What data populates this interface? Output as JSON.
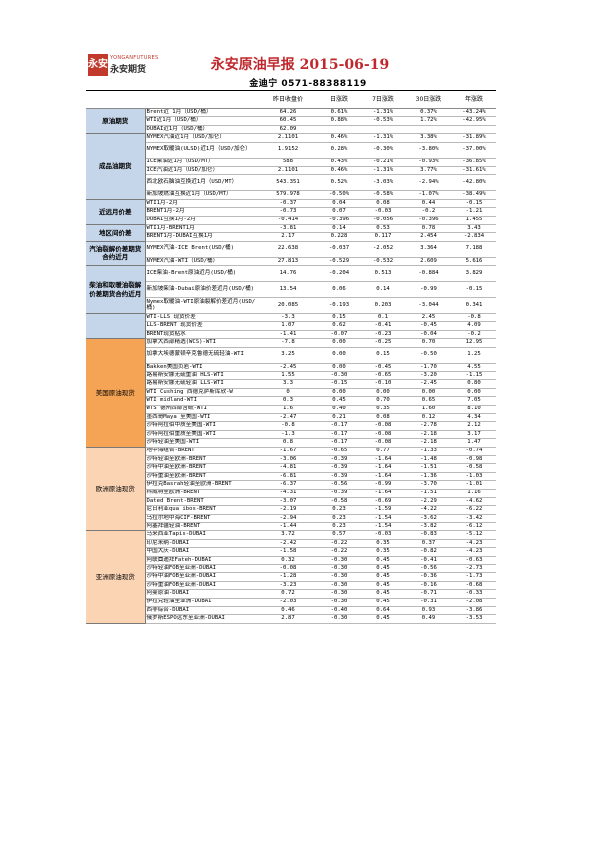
{
  "logo": {
    "mark": "永安",
    "en": "YONGANFUTURES",
    "cn": "永安期货"
  },
  "title": "永安原油早报 2015-06-19",
  "author": "金迪宁 0571-88388119",
  "columns": [
    "",
    "",
    "昨日收盘价",
    "日涨跌",
    "7日涨跌",
    "30日涨跌",
    "年涨跌"
  ],
  "sections": [
    {
      "name": "原油期货",
      "style": "blue",
      "rows": [
        {
          "label": "Brent近 1月（USD/桶）",
          "v": [
            "64.26",
            "0.61%",
            "-1.31%",
            "0.37%",
            "-43.24%"
          ]
        },
        {
          "label": "WTI近1月（USD/桶）",
          "v": [
            "60.45",
            "0.88%",
            "-0.53%",
            "1.72%",
            "-42.95%"
          ]
        },
        {
          "label": "DUBAI近1月（USD/桶）",
          "v": [
            "62.09",
            "",
            "",
            "",
            ""
          ]
        }
      ]
    },
    {
      "name": "成品油期货",
      "style": "blue",
      "rows": [
        {
          "label": "NYMEX汽油近1月（USD/加仑）",
          "v": [
            "2.1101",
            "0.46%",
            "-1.31%",
            "3.38%",
            "-31.89%"
          ]
        },
        {
          "label": "NYMEX取暖油(ULSD)近1月（USD/加仑）",
          "v": [
            "1.9152",
            "0.28%",
            "-0.30%",
            "-3.80%",
            "-37.00%"
          ],
          "tall": true
        },
        {
          "label": "ICE柴油近1月（USD/MT）",
          "v": [
            "588",
            "0.43%",
            "-0.21%",
            "-0.93%",
            "-36.85%"
          ]
        },
        {
          "label": "ICE汽油近1月（USD/加仑）",
          "v": [
            "2.1101",
            "0.46%",
            "-1.31%",
            "3.77%",
            "-31.61%"
          ]
        },
        {
          "label": "西北欧石脑油互换近1月（USD/MT）",
          "v": [
            "543.351",
            "0.52%",
            "-3.03%",
            "-2.94%",
            "-42.80%"
          ],
          "tall": true
        },
        {
          "label": "新加坡燃油互换近1月（USD/MT）",
          "v": [
            "579.978",
            "-0.50%",
            "-0.58%",
            "-1.07%",
            "-38.49%"
          ]
        }
      ]
    },
    {
      "name": "近远月价差",
      "style": "blue",
      "rows": [
        {
          "label": "WTI1月-2月",
          "v": [
            "-0.37",
            "0.04",
            "0.08",
            "0.44",
            "-0.15"
          ]
        },
        {
          "label": "BRENT1月-2月",
          "v": [
            "-0.73",
            "0.07",
            "-0.03",
            "-0.2",
            "-1.21"
          ]
        },
        {
          "label": "DUBAI互换1月-2月",
          "v": [
            "-0.414",
            "-0.396",
            "-0.056",
            "-0.396",
            "1.455"
          ]
        }
      ]
    },
    {
      "name": "地区间价差",
      "style": "blue",
      "rows": [
        {
          "label": "WTI1月-BRENT1月",
          "v": [
            "-3.81",
            "0.14",
            "0.53",
            "0.78",
            "3.43"
          ]
        },
        {
          "label": "BRENT1月-DUBAI互换1月",
          "v": [
            "2.17",
            "0.228",
            "0.117",
            "2.454",
            "-2.834"
          ]
        }
      ]
    },
    {
      "name": "汽油裂解价差期货合约近月",
      "style": "blue",
      "rows": [
        {
          "label": "NYMEX汽油-ICE Brent(USD/桶)",
          "v": [
            "22.638",
            "-0.037",
            "-2.052",
            "3.364",
            "7.188"
          ],
          "tall": true
        },
        {
          "label": "NYMEX汽油-WTI（USD/桶）",
          "v": [
            "27.813",
            "-0.529",
            "-0.532",
            "2.609",
            "5.616"
          ]
        }
      ]
    },
    {
      "name": "柴油和取暖油裂解价差期货合约近月",
      "style": "blue",
      "rows": [
        {
          "label": "ICE柴油-Brent原油近月(USD/桶)",
          "v": [
            "14.76",
            "-0.204",
            "0.513",
            "-0.884",
            "3.829"
          ],
          "tall": true
        },
        {
          "label": "新加坡柴油-Dubai原油价差近月(USD/桶)",
          "v": [
            "13.54",
            "0.06",
            "0.14",
            "-0.99",
            "-0.15"
          ],
          "tall": true
        },
        {
          "label": "Nymex取暖油-WTI原油裂解价差近月(USD/桶)",
          "v": [
            "20.085",
            "-0.193",
            "0.203",
            "-3.044",
            "0.341"
          ],
          "tall": true
        }
      ]
    },
    {
      "name": "",
      "style": "blue",
      "rows": [
        {
          "label": "WTI-LLS 现货价差",
          "v": [
            "-3.3",
            "0.15",
            "0.1",
            "2.45",
            "-0.8"
          ]
        },
        {
          "label": "LLS-BRENT 现货价差",
          "v": [
            "1.07",
            "0.62",
            "-0.41",
            "-0.45",
            "4.09"
          ]
        },
        {
          "label": "BRENT现货贴水",
          "v": [
            "-1.41",
            "-0.07",
            "-0.23",
            "-0.04",
            "-0.2"
          ]
        }
      ]
    },
    {
      "name": "美国原油现货",
      "style": "orange",
      "rows": [
        {
          "label": "加拿大西部精选(WCS)-WTI",
          "v": [
            "-7.8",
            "0.00",
            "-0.25",
            "0.70",
            "12.95"
          ]
        },
        {
          "label": "加拿大埃德蒙顿辛克鲁德无硫轻油-WTI",
          "v": [
            "3.25",
            "0.00",
            "0.15",
            "-0.50",
            "1.25"
          ],
          "tall": true
        },
        {
          "label": "Bakken美国页岩-WTI",
          "v": [
            "-2.45",
            "0.00",
            "-0.45",
            "-1.70",
            "4.55"
          ]
        },
        {
          "label": "路易斯安娜无硫重油 HLS-WTI",
          "v": [
            "1.55",
            "-0.30",
            "-0.65",
            "-3.20",
            "-1.15"
          ]
        },
        {
          "label": "路易斯安娜无硫轻油 LLS-WTI",
          "v": [
            "3.3",
            "-0.15",
            "-0.10",
            "-2.45",
            "0.80"
          ]
        },
        {
          "label": "WTI Cushing 西德克萨斯库欣-W",
          "v": [
            "0",
            "0.00",
            "0.00",
            "0.00",
            "0.00"
          ]
        },
        {
          "label": "WTI midland-WTI",
          "v": [
            "0.3",
            "0.45",
            "0.70",
            "0.65",
            "7.05"
          ]
        },
        {
          "label": "WTS  德州西部含硫-WTI",
          "v": [
            "1.6",
            "0.40",
            "0.35",
            "1.60",
            "8.10"
          ]
        },
        {
          "label": "墨西哥Maya 至美国-WTI",
          "v": [
            "-2.47",
            "0.21",
            "0.08",
            "0.12",
            "4.34"
          ]
        },
        {
          "label": "沙特阿拉伯中质至美国-WTI",
          "v": [
            "-0.8",
            "-0.17",
            "-0.08",
            "-2.78",
            "2.12"
          ]
        },
        {
          "label": "沙特阿拉伯重质至美国-WTI",
          "v": [
            "-1.3",
            "-0.17",
            "-0.08",
            "-2.18",
            "3.17"
          ]
        },
        {
          "label": "沙特轻油至美国-WTI",
          "v": [
            "0.8",
            "-0.17",
            "-0.08",
            "-2.18",
            "1.47"
          ]
        }
      ]
    },
    {
      "name": "欧洲原油现货",
      "style": "peach",
      "rows": [
        {
          "label": "地中海组合-BRENT",
          "v": [
            "-1.67",
            "-0.65",
            "0.77",
            "-1.33",
            "-0.74"
          ]
        },
        {
          "label": "沙特轻油至欧洲-BRENT",
          "v": [
            "-3.06",
            "-0.39",
            "-1.64",
            "-1.48",
            "-0.98"
          ]
        },
        {
          "label": "沙特中油至欧洲-BRENT",
          "v": [
            "-4.81",
            "-0.39",
            "-1.64",
            "-1.51",
            "-0.58"
          ]
        },
        {
          "label": "沙特重油至欧洲-BRENT",
          "v": [
            "-6.81",
            "-0.39",
            "-1.64",
            "-1.36",
            "-1.03"
          ]
        },
        {
          "label": "伊拉克Basrah轻油至欧洲-BRENT",
          "v": [
            "-6.37",
            "-0.56",
            "-0.99",
            "-3.70",
            "-1.01"
          ]
        },
        {
          "label": "科威特至欧洲-BRENT",
          "v": [
            "-4.31",
            "-0.39",
            "-1.64",
            "-1.51",
            "1.16"
          ]
        },
        {
          "label": "Dated Brent-BRENT",
          "v": [
            "-3.07",
            "-0.58",
            "-0.69",
            "-2.29",
            "-4.62"
          ]
        },
        {
          "label": "尼日利亚qua ibos-BRENT",
          "v": [
            "-2.19",
            "0.23",
            "-1.59",
            "-4.22",
            "-6.22"
          ]
        },
        {
          "label": "乌拉尔地中海CIF-BRENT",
          "v": [
            "-2.94",
            "0.23",
            "-1.54",
            "-3.62",
            "-3.42"
          ]
        },
        {
          "label": "阿塞拜疆轻油-BRENT",
          "v": [
            "-1.44",
            "0.23",
            "-1.54",
            "-3.82",
            "-6.12"
          ]
        }
      ]
    },
    {
      "name": "亚洲原油现货",
      "style": "peach",
      "rows": [
        {
          "label": "马来西亚Tapis-DUBAI",
          "v": [
            "3.72",
            "0.57",
            "-0.03",
            "-0.83",
            "-5.12"
          ]
        },
        {
          "label": "印尼米纳-DUBAI",
          "v": [
            "-2.42",
            "-0.22",
            "0.35",
            "0.37",
            "-4.23"
          ]
        },
        {
          "label": "中国大庆-DUBAI",
          "v": [
            "-1.58",
            "-0.22",
            "0.35",
            "-0.82",
            "-4.23"
          ]
        },
        {
          "label": "阿联酋迪拜Fateh-DUBAI",
          "v": [
            "0.32",
            "-0.30",
            "0.45",
            "-0.41",
            "-0.63"
          ]
        },
        {
          "label": "沙特轻油FOB至亚洲-DUBAI",
          "v": [
            "-0.08",
            "-0.30",
            "0.45",
            "-0.56",
            "-2.73"
          ]
        },
        {
          "label": "沙特中油FOB至亚洲-DUBAI",
          "v": [
            "-1.28",
            "-0.30",
            "0.45",
            "-0.36",
            "-1.73"
          ]
        },
        {
          "label": "沙特重油FOB至亚洲-DUBAI",
          "v": [
            "-3.23",
            "-0.30",
            "0.45",
            "-0.16",
            "-0.68"
          ]
        },
        {
          "label": "阿曼原油-DUBAI",
          "v": [
            "0.72",
            "-0.30",
            "0.45",
            "-0.71",
            "-0.33"
          ]
        },
        {
          "label": "伊拉克轻油至亚洲-DUBAI",
          "v": [
            "-2.03",
            "-0.30",
            "0.45",
            "-0.31",
            "-2.08"
          ]
        },
        {
          "label": "西非综合-DUBAI",
          "v": [
            "0.46",
            "-0.40",
            "0.64",
            "0.93",
            "-3.86"
          ]
        },
        {
          "label": "俄罗斯ESPO远东至亚洲-DUBAI",
          "v": [
            "2.87",
            "-0.30",
            "0.45",
            "0.49",
            "-3.53"
          ]
        }
      ]
    }
  ]
}
